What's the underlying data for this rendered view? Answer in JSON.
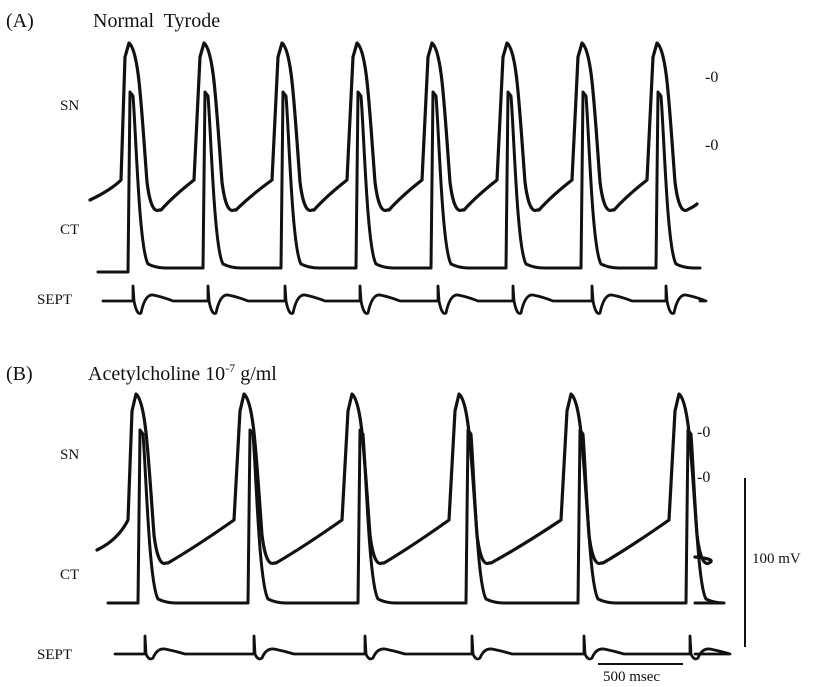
{
  "colors": {
    "background": "#ffffff",
    "trace": "#111111",
    "text": "#111111"
  },
  "chart_data": [
    {
      "type": "line",
      "panel_label": "(A)",
      "condition": "Normal  Tyrode",
      "trace_labels": [
        "SN",
        "CT",
        "SEPT"
      ],
      "zero_markers": [
        "-0",
        "-0"
      ],
      "beats": 7,
      "series": [
        {
          "name": "SN",
          "beat_times_ms": [
            0,
            430,
            860,
            1290,
            1720,
            2150,
            2580
          ]
        },
        {
          "name": "CT",
          "beat_times_ms": [
            20,
            450,
            880,
            1310,
            1740,
            2170,
            2600
          ]
        },
        {
          "name": "SEPT",
          "beat_times_ms": [
            25,
            455,
            885,
            1315,
            1745,
            2175,
            2605
          ]
        }
      ],
      "grid": false
    },
    {
      "type": "line",
      "panel_label": "(B)",
      "condition_prefix": "Acetylcholine 10",
      "condition_exp": "-7",
      "condition_suffix": " g/ml",
      "trace_labels": [
        "SN",
        "CT",
        "SEPT"
      ],
      "zero_markers": [
        "-0",
        "-0"
      ],
      "beats": 6,
      "series": [
        {
          "name": "SN",
          "beat_times_ms": [
            0,
            600,
            1200,
            1800,
            2400,
            3000
          ]
        },
        {
          "name": "CT",
          "beat_times_ms": [
            25,
            625,
            1225,
            1825,
            2425,
            3025
          ]
        },
        {
          "name": "SEPT",
          "beat_times_ms": [
            30,
            630,
            1230,
            1830,
            2430,
            3030
          ]
        }
      ],
      "grid": false
    }
  ],
  "scale_bars": {
    "voltage": "100 mV",
    "time": "500 msec"
  }
}
